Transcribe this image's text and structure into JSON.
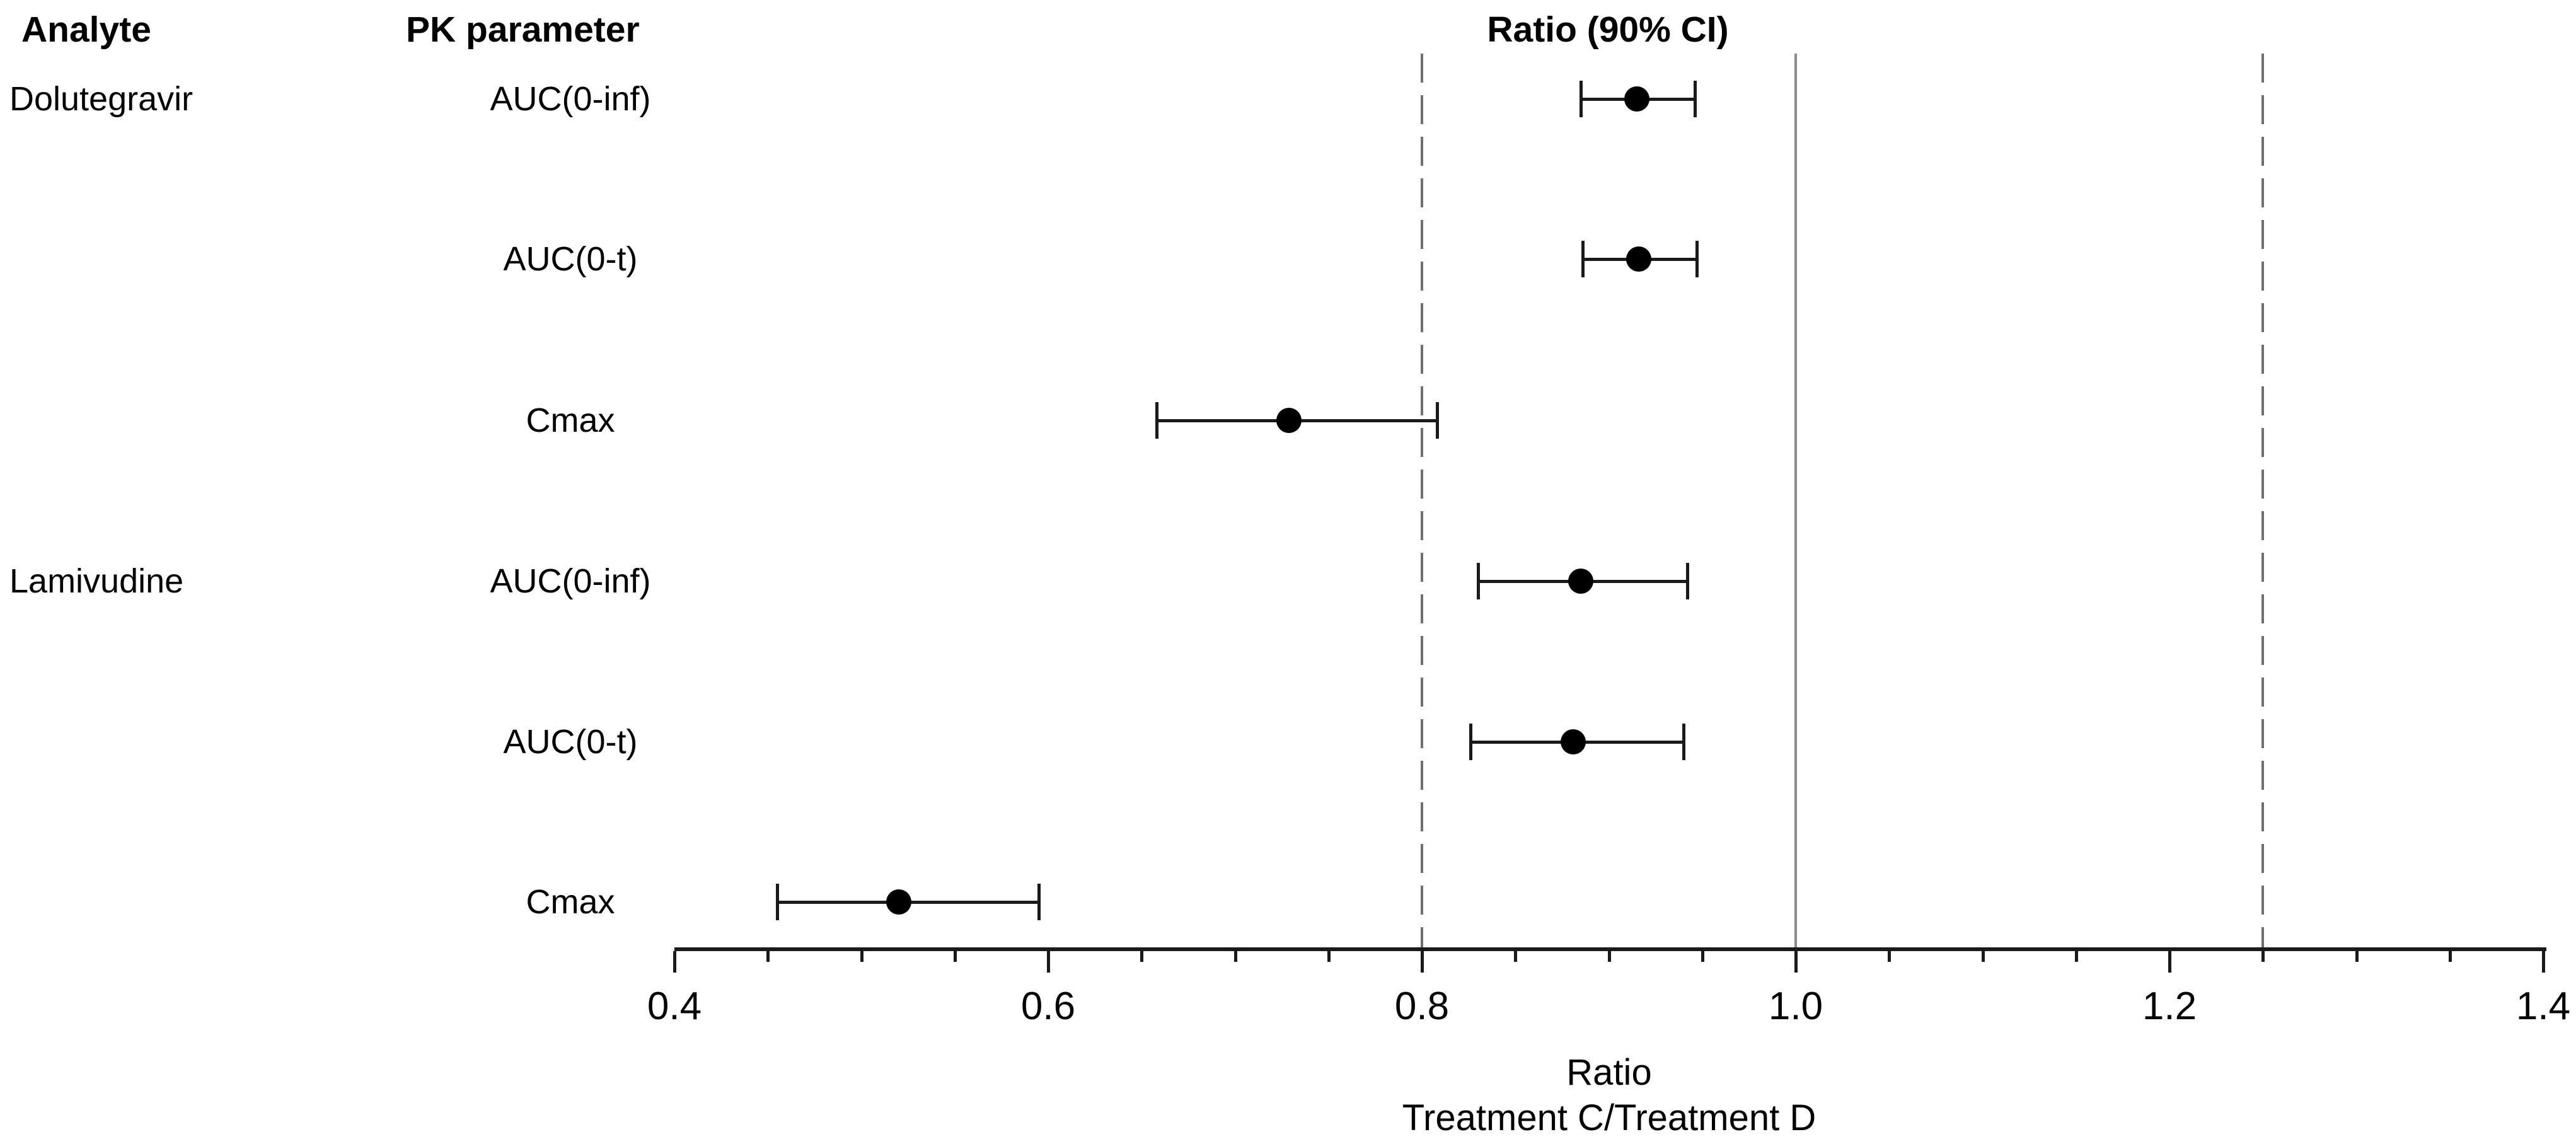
{
  "headers": {
    "analyte": "Analyte",
    "pk_parameter": "PK parameter",
    "ratio_ci": "Ratio (90% CI)"
  },
  "chart_data": {
    "type": "scatter",
    "subtype": "forest-plot",
    "rows": [
      {
        "analyte": "Dolutegravir",
        "pk_parameter": "AUC(0-inf)",
        "ratio": 0.915,
        "ci_lower": 0.885,
        "ci_upper": 0.946
      },
      {
        "analyte": "",
        "pk_parameter": "AUC(0-t)",
        "ratio": 0.916,
        "ci_lower": 0.886,
        "ci_upper": 0.947
      },
      {
        "analyte": "",
        "pk_parameter": "Cmax",
        "ratio": 0.729,
        "ci_lower": 0.658,
        "ci_upper": 0.808
      },
      {
        "analyte": "Lamivudine",
        "pk_parameter": "AUC(0-inf)",
        "ratio": 0.885,
        "ci_lower": 0.83,
        "ci_upper": 0.942
      },
      {
        "analyte": "",
        "pk_parameter": "AUC(0-t)",
        "ratio": 0.881,
        "ci_lower": 0.826,
        "ci_upper": 0.94
      },
      {
        "analyte": "",
        "pk_parameter": "Cmax",
        "ratio": 0.52,
        "ci_lower": 0.455,
        "ci_upper": 0.595
      }
    ],
    "x_axis": {
      "min": 0.4,
      "max": 1.4,
      "major_ticks": [
        0.4,
        0.6,
        0.8,
        1.0,
        1.2,
        1.4
      ],
      "tick_labels": [
        "0.4",
        "0.6",
        "0.8",
        "1.0",
        "1.2",
        "1.4"
      ],
      "minor_tick_step": 0.05,
      "grid": false
    },
    "reference_lines": [
      {
        "value": 0.8,
        "style": "dashed"
      },
      {
        "value": 1.0,
        "style": "solid"
      },
      {
        "value": 1.25,
        "style": "dashed"
      }
    ],
    "xlabel_line1": "Ratio",
    "xlabel_line2": "Treatment C/Treatment D",
    "title": "Ratio (90% CI)",
    "marker_color": "#000000",
    "ci_color": "#1a1a1a",
    "reference_line_color": "#8a8a8a",
    "legend": "none"
  }
}
